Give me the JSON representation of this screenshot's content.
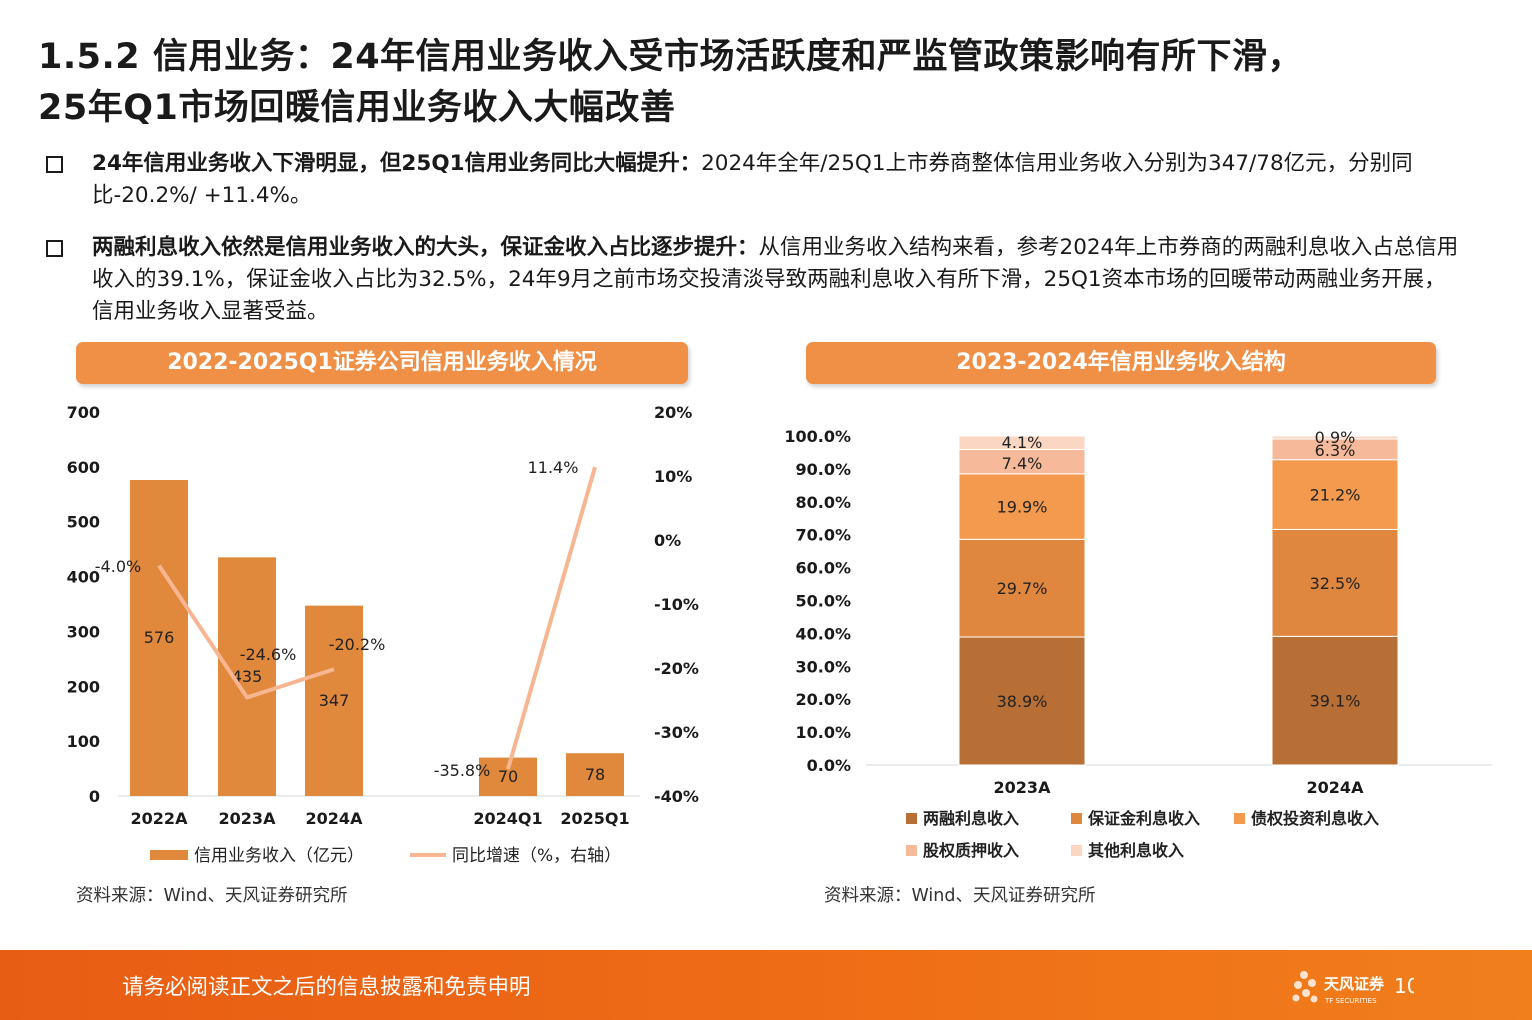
{
  "title": {
    "line1": "1.5.2 信用业务：24年信用业务收入受市场活跃度和严监管政策影响有所下滑，",
    "line2": "25年Q1市场回暖信用业务收入大幅改善"
  },
  "bullets": [
    {
      "bold": "24年信用业务收入下滑明显，但25Q1信用业务同比大幅提升：",
      "text": "2024年全年/25Q1上市券商整体信用业务收入分别为347/78亿元，分别同比-20.2%/ +11.4%。"
    },
    {
      "bold": "两融利息收入依然是信用业务收入的大头，保证金收入占比逐步提升：",
      "text": "从信用业务收入结构来看，参考2024年上市券商的两融利息收入占总信用收入的39.1%，保证金收入占比为32.5%，24年9月之前市场交投清淡导致两融利息收入有所下滑，25Q1资本市场的回暖带动两融业务开展，信用业务收入显著受益。"
    }
  ],
  "colors": {
    "accent": "#f08f46",
    "bar": "#e0883c",
    "line": "#f7b691",
    "footer": "#ee6a16"
  },
  "chart_data": [
    {
      "type": "bar",
      "title": "2022-2025Q1证券公司信用业务收入情况",
      "categories": [
        "2022A",
        "2023A",
        "2024A",
        "2024Q1",
        "2025Q1"
      ],
      "series": [
        {
          "name": "信用业务收入（亿元）",
          "type": "bar",
          "values": [
            576,
            435,
            347,
            70,
            78
          ],
          "labels": [
            "576",
            "435",
            "347",
            "70",
            "78"
          ]
        },
        {
          "name": "同比增速（%，右轴）",
          "type": "line",
          "axis": "right",
          "values": [
            -4.0,
            -24.6,
            -20.2,
            -35.8,
            11.4
          ],
          "labels": [
            "-4.0%",
            "-24.6%",
            "-20.2%",
            "-35.8%",
            "11.4%"
          ]
        }
      ],
      "y_ticks": [
        "700",
        "600",
        "500",
        "400",
        "300",
        "200",
        "100",
        "0"
      ],
      "y2_ticks": [
        "20%",
        "10%",
        "0%",
        "-10%",
        "-20%",
        "-30%",
        "-40%"
      ],
      "ylim": [
        0,
        700
      ],
      "y2lim": [
        -40,
        20
      ],
      "legend": "bottom"
    },
    {
      "type": "bar",
      "stacked": true,
      "title": "2023-2024年信用业务收入结构",
      "categories": [
        "2023A",
        "2024A"
      ],
      "series": [
        {
          "name": "两融利息收入",
          "values": [
            38.9,
            39.1
          ],
          "labels": [
            "38.9%",
            "39.1%"
          ],
          "color": "#b86f35"
        },
        {
          "name": "保证金利息收入",
          "values": [
            29.7,
            32.5
          ],
          "labels": [
            "29.7%",
            "32.5%"
          ],
          "color": "#e0873f"
        },
        {
          "name": "债权投资利息收入",
          "values": [
            19.9,
            21.2
          ],
          "labels": [
            "19.9%",
            "21.2%"
          ],
          "color": "#f39a4e"
        },
        {
          "name": "股权质押收入",
          "values": [
            7.4,
            6.3
          ],
          "labels": [
            "7.4%",
            "6.3%"
          ],
          "color": "#f6b99a"
        },
        {
          "name": "其他利息收入",
          "values": [
            4.1,
            0.9
          ],
          "labels": [
            "4.1%",
            "0.9%"
          ],
          "color": "#fad6c3"
        }
      ],
      "y_ticks": [
        "100.0%",
        "90.0%",
        "80.0%",
        "70.0%",
        "60.0%",
        "50.0%",
        "40.0%",
        "30.0%",
        "20.0%",
        "10.0%",
        "0.0%"
      ],
      "ylim": [
        0,
        100
      ],
      "legend": "bottom"
    }
  ],
  "sources": [
    "资料来源：Wind、天风证券研究所",
    "资料来源：Wind、天风证券研究所"
  ],
  "footer": {
    "text": "请务必阅读正文之后的信息披露和免责申明",
    "page": "10"
  },
  "logo": {
    "cn": "天风证券",
    "en": "TF SECURITIES"
  }
}
